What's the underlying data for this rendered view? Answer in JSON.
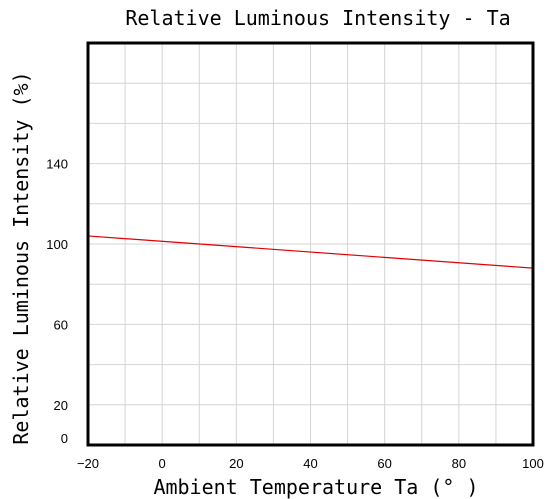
{
  "chart_data": {
    "type": "line",
    "title": "Relative Luminous Intensity - Ta",
    "xlabel": "Ambient Temperature Ta (° )",
    "ylabel": "Relative Luminous Intensity (%)",
    "xlim": [
      -20,
      100
    ],
    "ylim": [
      0,
      200
    ],
    "xticks": [
      -20,
      0,
      20,
      40,
      60,
      80,
      100
    ],
    "yticks": [
      0,
      20,
      60,
      100,
      140
    ],
    "grid": true,
    "series": [
      {
        "color": "#e00000",
        "x": [
          -20,
          100
        ],
        "y": [
          104,
          88
        ]
      }
    ]
  }
}
